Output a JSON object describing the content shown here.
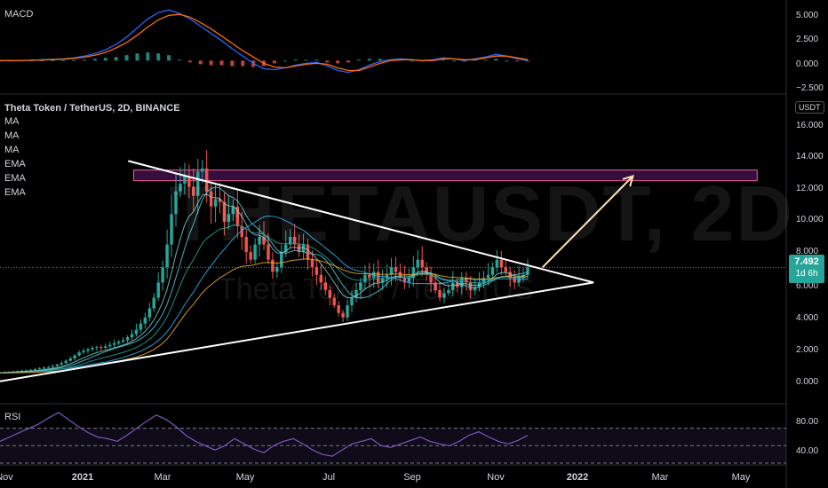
{
  "symbol_title": "Theta Token / TetherUS, 2D, BINANCE",
  "watermark_symbol": "THETAUSDT, 2D",
  "watermark_name": "Theta Token / TetherUS",
  "currency_tag": "USDT",
  "indicators": [
    "MA",
    "MA",
    "MA",
    "EMA",
    "EMA",
    "EMA"
  ],
  "macd_label": "MACD",
  "rsi_label": "RSI",
  "price_tag": {
    "price": "7.492",
    "countdown": "1d 6h"
  },
  "colors": {
    "up": "#26a69a",
    "down": "#ef5350",
    "macd": "#2962ff",
    "signal": "#ff6d00",
    "rsi": "#7e57c2",
    "zone": "#9c27b0",
    "arrow": "#ffe0b2"
  },
  "chart_data": [
    {
      "type": "candlestick",
      "title": "Theta Token / TetherUS, 2D, BINANCE",
      "x_ticks": [
        "Nov",
        "2021",
        "Mar",
        "May",
        "Jul",
        "Sep",
        "Nov",
        "2022",
        "Mar",
        "May"
      ],
      "x_ticks_bold": [
        "2021",
        "2022"
      ],
      "y_ticks": [
        "16.000",
        "14.000",
        "12.000",
        "10.000",
        "8.000",
        "6.000",
        "4.000",
        "2.000",
        "0.000"
      ],
      "ylim": [
        -0.6,
        17.5
      ],
      "last_price": 7.492,
      "close_series": [
        0.55,
        0.6,
        0.62,
        0.65,
        0.68,
        0.7,
        0.72,
        0.75,
        0.8,
        0.85,
        0.9,
        0.95,
        1.0,
        1.1,
        1.2,
        1.35,
        1.5,
        1.7,
        1.9,
        2.0,
        2.1,
        2.2,
        2.25,
        2.2,
        2.3,
        2.4,
        2.5,
        2.6,
        2.7,
        2.9,
        3.1,
        3.4,
        3.8,
        4.2,
        4.8,
        5.5,
        6.5,
        7.5,
        9.0,
        11.0,
        12.5,
        13.0,
        13.5,
        12.8,
        12.2,
        13.8,
        14.0,
        12.5,
        11.5,
        12.0,
        11.8,
        10.5,
        11.0,
        11.5,
        10.2,
        9.5,
        8.5,
        8.0,
        9.0,
        9.5,
        9.0,
        8.0,
        7.2,
        7.5,
        8.5,
        9.0,
        9.5,
        9.0,
        8.5,
        9.0,
        8.0,
        7.5,
        7.0,
        6.5,
        6.0,
        5.5,
        5.0,
        4.5,
        4.2,
        5.0,
        5.5,
        6.0,
        6.5,
        7.0,
        6.8,
        7.2,
        6.5,
        6.8,
        7.0,
        7.5,
        7.2,
        6.8,
        6.5,
        6.8,
        7.5,
        8.0,
        7.5,
        7.0,
        6.5,
        6.0,
        5.5,
        5.8,
        6.0,
        6.5,
        6.2,
        6.8,
        6.5,
        6.0,
        6.2,
        6.5,
        6.8,
        7.0,
        7.5,
        8.0,
        7.5,
        7.2,
        6.8,
        6.5,
        6.8,
        7.0,
        7.492
      ],
      "trendlines": [
        {
          "name": "descending-resistance",
          "from": [
            0.163,
            14.5
          ],
          "to": [
            0.755,
            6.5
          ]
        },
        {
          "name": "ascending-support",
          "from": [
            0.0,
            0.0
          ],
          "to": [
            0.755,
            6.5
          ]
        }
      ],
      "resistance_zone": [
        13.2,
        13.9
      ],
      "projection_arrow": {
        "from": [
          0.69,
          7.5
        ],
        "to": [
          0.805,
          13.5
        ]
      }
    },
    {
      "type": "line",
      "title": "MACD",
      "y_ticks": [
        "5.000",
        "2.500",
        "0.000",
        "−2.500"
      ],
      "ylim": [
        -3.3,
        6.2
      ],
      "series": [
        {
          "values": [
            0,
            0,
            0.02,
            0.05,
            0.1,
            0.15,
            0.2,
            0.3,
            0.5,
            0.8,
            1.2,
            1.8,
            2.6,
            3.6,
            4.6,
            5.3,
            5.6,
            5.2,
            4.6,
            3.8,
            3.0,
            2.2,
            1.3,
            0.5,
            -0.3,
            -0.9,
            -1.0,
            -0.8,
            -0.5,
            -0.3,
            -0.2,
            -0.6,
            -1.1,
            -1.3,
            -1.0,
            -0.5,
            -0.1,
            0.1,
            0.2,
            0.1,
            0.0,
            0.1,
            0.3,
            0.2,
            0.0,
            0.2,
            0.4,
            0.7,
            0.5,
            0.2,
            0.0
          ]
        },
        {
          "values": [
            0,
            0,
            0.01,
            0.03,
            0.07,
            0.11,
            0.16,
            0.24,
            0.38,
            0.6,
            0.9,
            1.4,
            2.0,
            2.8,
            3.7,
            4.5,
            5.0,
            5.1,
            4.8,
            4.2,
            3.5,
            2.7,
            1.9,
            1.1,
            0.4,
            -0.3,
            -0.7,
            -0.8,
            -0.6,
            -0.4,
            -0.3,
            -0.4,
            -0.8,
            -1.1,
            -1.1,
            -0.7,
            -0.3,
            0.0,
            0.1,
            0.1,
            0.0,
            0.0,
            0.2,
            0.2,
            0.1,
            0.1,
            0.3,
            0.5,
            0.5,
            0.3,
            0.1
          ]
        }
      ]
    },
    {
      "type": "line",
      "title": "RSI",
      "y_ticks": [
        "80.00",
        "40.00"
      ],
      "ylim": [
        30,
        95
      ],
      "bands": [
        70,
        50,
        30
      ],
      "values": [
        55,
        60,
        65,
        70,
        75,
        82,
        88,
        80,
        72,
        65,
        60,
        58,
        55,
        62,
        70,
        78,
        85,
        80,
        72,
        62,
        55,
        50,
        45,
        50,
        58,
        52,
        46,
        42,
        50,
        55,
        58,
        52,
        45,
        40,
        38,
        45,
        52,
        55,
        58,
        50,
        48,
        52,
        56,
        60,
        55,
        52,
        50,
        55,
        62,
        66,
        60,
        55,
        52,
        56,
        62
      ]
    }
  ]
}
